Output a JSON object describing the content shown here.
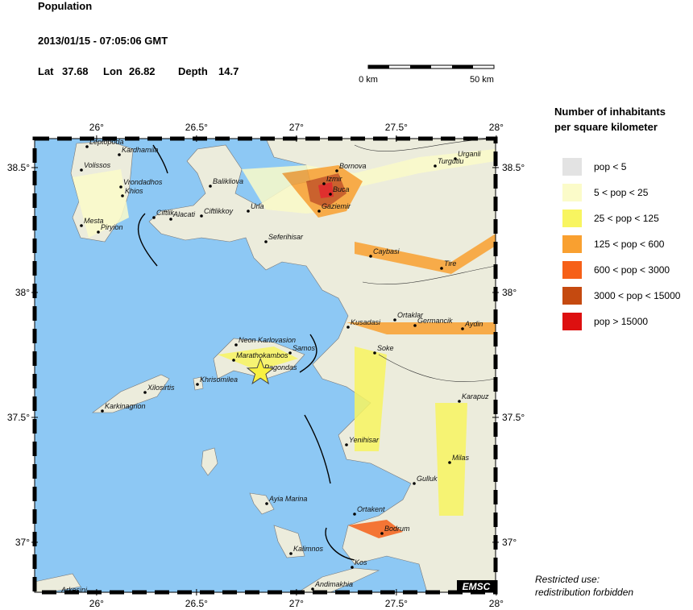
{
  "header": {
    "title": "Population",
    "datetime": "2013/01/15 - 07:05:06 GMT",
    "lat_label": "Lat",
    "lat": 37.68,
    "lon_label": "Lon",
    "lon": 26.82,
    "depth_label": "Depth",
    "depth": 14.7
  },
  "scale_bar": {
    "start_label": "0 km",
    "end_label": "50 km"
  },
  "legend": {
    "title_lines": [
      "Number of inhabitants",
      "per square kilometer"
    ],
    "items": [
      {
        "label": "pop < 5",
        "color": "#e3e3e3"
      },
      {
        "label": "5 < pop < 25",
        "color": "#fbfbc9"
      },
      {
        "label": "25 < pop < 125",
        "color": "#f8f560"
      },
      {
        "label": "125 < pop < 600",
        "color": "#f9a030"
      },
      {
        "label": "600 < pop < 3000",
        "color": "#f66018"
      },
      {
        "label": "3000 < pop < 15000",
        "color": "#c54a10"
      },
      {
        "label": "pop > 15000",
        "color": "#dd1010"
      }
    ]
  },
  "map": {
    "lon_ticks": [
      {
        "value": 26,
        "label": "26°"
      },
      {
        "value": 26.5,
        "label": "26.5°"
      },
      {
        "value": 27,
        "label": "27°"
      },
      {
        "value": 27.5,
        "label": "27.5°"
      },
      {
        "value": 28,
        "label": "28°"
      }
    ],
    "lat_ticks": [
      {
        "value": 38.5,
        "label": "38.5°"
      },
      {
        "value": 38,
        "label": "38°"
      },
      {
        "value": 37.5,
        "label": "37.5°"
      },
      {
        "value": 37,
        "label": "37°"
      }
    ],
    "cities": [
      "Leptopoda",
      "Kardhamila",
      "Volissos",
      "Vrondadhos",
      "Khios",
      "Mesta",
      "Piryion",
      "Ciftlik",
      "Alacati",
      "Ciftlikkoy",
      "Balikliova",
      "Urla",
      "Izmir",
      "Bornova",
      "Buca",
      "Gaziemir",
      "Seferihisar",
      "Turgutlu",
      "Urganli",
      "Caybasi",
      "Tire",
      "Kusadasi",
      "Ortaklar",
      "Germancik",
      "Aydin",
      "Soke",
      "Neon Karlovasion",
      "Samos",
      "Marathokambos",
      "Pagondas",
      "Khrisomilea",
      "Xilosirtis",
      "Karkinagrion",
      "Karapuz",
      "Yenihisar",
      "Milas",
      "Gulluk",
      "Ayia Marina",
      "Ortakent",
      "Bodrum",
      "Kalimnos",
      "Kos",
      "Andimakhia",
      "Arkesini"
    ],
    "logo": "EMSC"
  },
  "notice_lines": [
    "Restricted use:",
    "redistribution forbidden"
  ]
}
